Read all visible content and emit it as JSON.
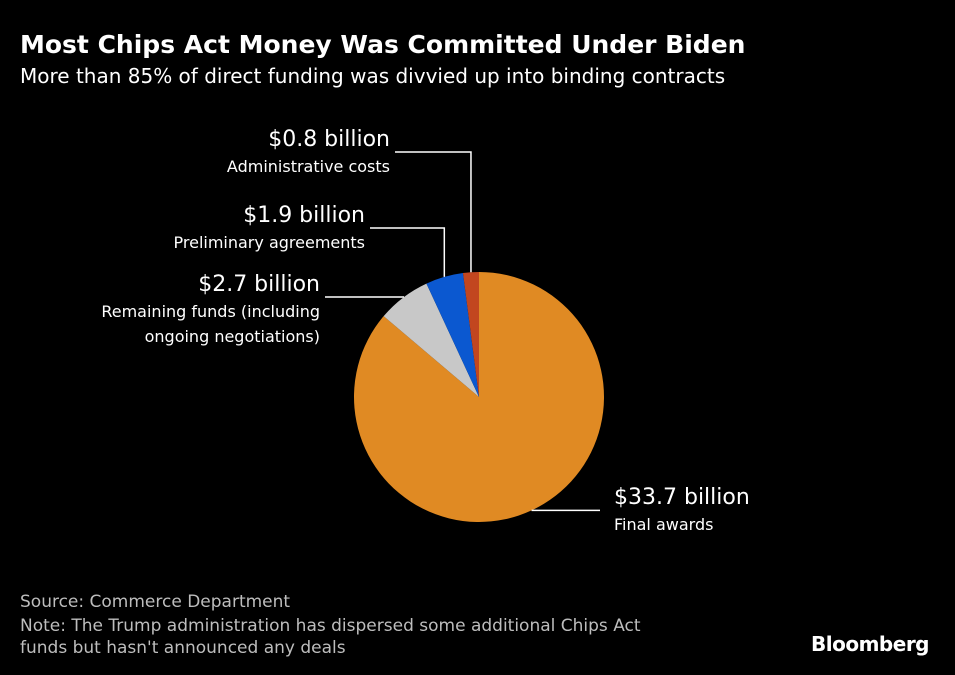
{
  "chart_data": {
    "type": "pie",
    "title": "Most Chips Act Money Was Committed Under Biden",
    "subtitle": "More than 85% of direct funding was divvied up into binding contracts",
    "unit": "billion USD",
    "slices": [
      {
        "name": "Final awards",
        "value": 33.7,
        "value_label": "$33.7 billion",
        "label_lines": [
          "Final awards"
        ],
        "color": "#e08a23"
      },
      {
        "name": "Remaining funds (including ongoing negotiations)",
        "value": 2.7,
        "value_label": "$2.7 billion",
        "label_lines": [
          "Remaining funds (including",
          "ongoing negotiations)"
        ],
        "color": "#c8c8c8"
      },
      {
        "name": "Preliminary agreements",
        "value": 1.9,
        "value_label": "$1.9 billion",
        "label_lines": [
          "Preliminary agreements"
        ],
        "color": "#0b58d0"
      },
      {
        "name": "Administrative costs",
        "value": 0.8,
        "value_label": "$0.8 billion",
        "label_lines": [
          "Administrative costs"
        ],
        "color": "#c2461f"
      }
    ],
    "direction": "clockwise from top"
  },
  "footer": {
    "source": "Source: Commerce Department",
    "note_line1": "Note: The Trump administration has dispersed some additional Chips Act",
    "note_line2": "funds but hasn't announced any deals"
  },
  "brand": "Bloomberg"
}
